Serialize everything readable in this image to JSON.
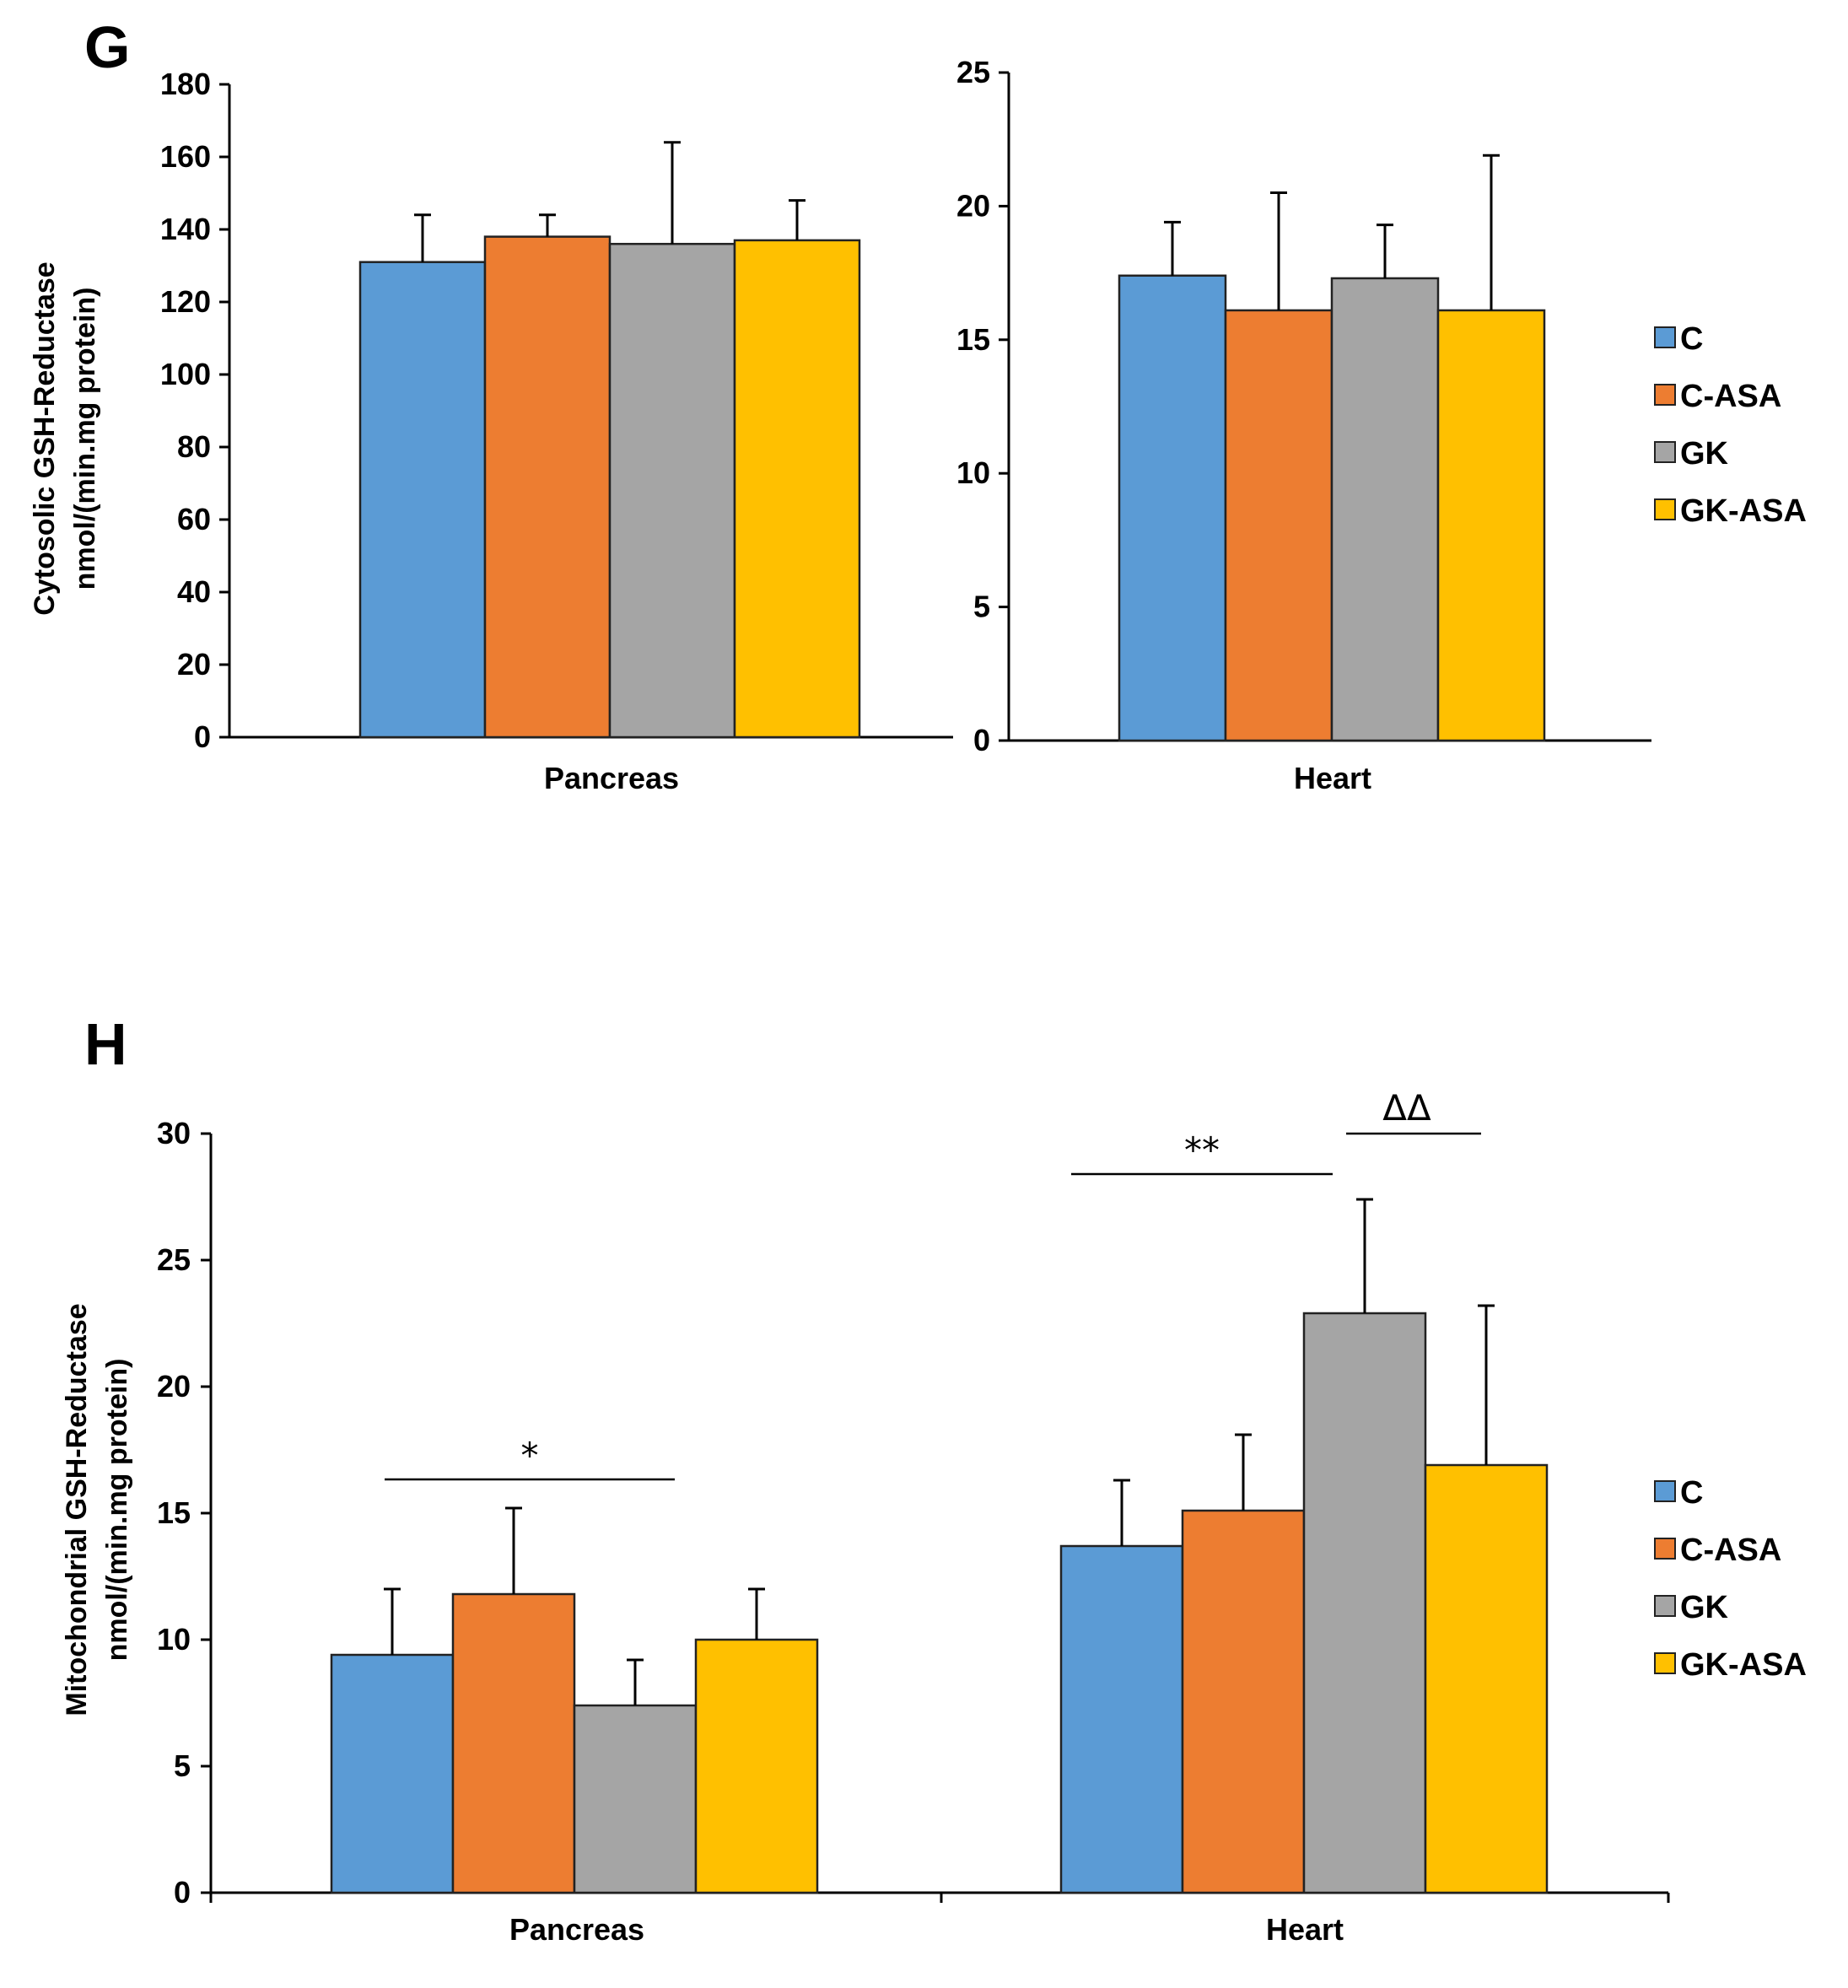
{
  "chart_data": [
    {
      "panel": "G",
      "type": "bar",
      "ylabel": [
        "Cytosolic GSH-Reductase",
        "nmol/(min.mg protein)"
      ],
      "series_names": [
        "C",
        "C-ASA",
        "GK",
        "GK-ASA"
      ],
      "colors": [
        "#5B9BD5",
        "#ED7D31",
        "#A5A5A5",
        "#FFC000"
      ],
      "subcharts": [
        {
          "category": "Pancreas",
          "ylim": [
            0,
            180
          ],
          "ticks": [
            0,
            20,
            40,
            60,
            80,
            100,
            120,
            140,
            160,
            180
          ],
          "values": [
            131,
            138,
            136,
            137
          ],
          "errors": [
            13,
            6,
            28,
            11
          ]
        },
        {
          "category": "Heart",
          "ylim": [
            0,
            25
          ],
          "ticks": [
            0,
            5,
            10,
            15,
            20,
            25
          ],
          "values": [
            17.4,
            16.1,
            17.3,
            16.1
          ],
          "errors": [
            2.0,
            4.4,
            2.0,
            5.8
          ]
        }
      ]
    },
    {
      "panel": "H",
      "type": "bar",
      "ylabel": [
        "Mitochondrial GSH-Reductase",
        "nmol/(min.mg protein)"
      ],
      "series_names": [
        "C",
        "C-ASA",
        "GK",
        "GK-ASA"
      ],
      "colors": [
        "#5B9BD5",
        "#ED7D31",
        "#A5A5A5",
        "#FFC000"
      ],
      "categories": [
        "Pancreas",
        "Heart"
      ],
      "ylim": [
        0,
        30
      ],
      "ticks": [
        0,
        5,
        10,
        15,
        20,
        25,
        30
      ],
      "series": [
        {
          "name": "C",
          "values": [
            9.4,
            13.7
          ],
          "errors": [
            2.6,
            2.6
          ]
        },
        {
          "name": "C-ASA",
          "values": [
            11.8,
            15.1
          ],
          "errors": [
            3.4,
            3.0
          ]
        },
        {
          "name": "GK",
          "values": [
            7.4,
            22.9
          ],
          "errors": [
            1.8,
            4.5
          ]
        },
        {
          "name": "GK-ASA",
          "values": [
            10.0,
            16.9
          ],
          "errors": [
            2.0,
            6.3
          ]
        }
      ],
      "annotations": [
        {
          "text": "*",
          "category": 0,
          "from": 0,
          "to": 2
        },
        {
          "text": "**",
          "category": 1,
          "from": 0,
          "to": 2
        },
        {
          "text": "ΔΔ",
          "category": 1,
          "from": 2,
          "to": 3
        }
      ]
    }
  ]
}
